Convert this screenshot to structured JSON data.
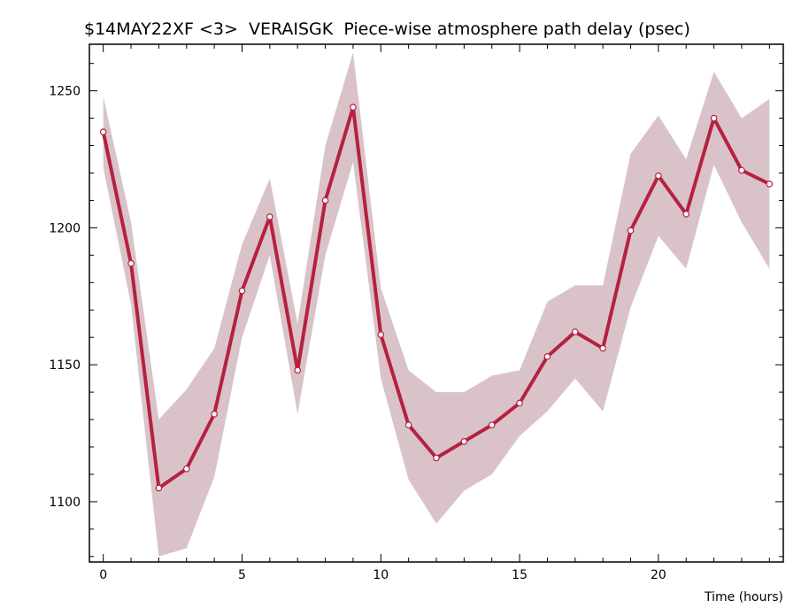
{
  "colors": {
    "line": "#b5213f",
    "band": "#d9c3c8",
    "marker_fill": "#ffffff",
    "axis": "#000000"
  },
  "chart_data": {
    "type": "line",
    "title": "$14MAY22XF <3>  VERAISGK  Piece-wise atmosphere path delay (psec)",
    "xlabel": "Time (hours)",
    "ylabel": "",
    "xlim": [
      -0.5,
      24.5
    ],
    "ylim": [
      1078,
      1267
    ],
    "x_ticks": [
      0,
      5,
      10,
      15,
      20
    ],
    "y_ticks": [
      1100,
      1150,
      1200,
      1250
    ],
    "x_tick_labels": [
      "0",
      "5",
      "10",
      "15",
      "20"
    ],
    "y_tick_labels": [
      "1100",
      "1150",
      "1200",
      "1250"
    ],
    "grid": false,
    "series": [
      {
        "x": [
          0,
          1,
          2,
          3,
          4,
          5,
          6,
          7,
          8,
          9,
          10,
          11,
          12,
          13,
          14,
          15,
          16,
          17,
          18,
          19,
          20,
          21,
          22,
          23,
          24
        ],
        "values": [
          1235,
          1187,
          1105,
          1112,
          1132,
          1177,
          1204,
          1148,
          1210,
          1244,
          1161,
          1128,
          1116,
          1122,
          1128,
          1136,
          1153,
          1162,
          1156,
          1199,
          1219,
          1205,
          1240,
          1221,
          1216
        ],
        "upper": [
          1248,
          1202,
          1130,
          1141,
          1156,
          1194,
          1218,
          1165,
          1230,
          1264,
          1178,
          1148,
          1140,
          1140,
          1146,
          1148,
          1173,
          1179,
          1179,
          1227,
          1241,
          1225,
          1257,
          1240,
          1247
        ],
        "lower": [
          1222,
          1172,
          1080,
          1083,
          1109,
          1160,
          1190,
          1132,
          1190,
          1224,
          1145,
          1108,
          1092,
          1104,
          1110,
          1124,
          1133,
          1145,
          1133,
          1171,
          1197,
          1185,
          1223,
          1202,
          1185
        ]
      }
    ]
  }
}
